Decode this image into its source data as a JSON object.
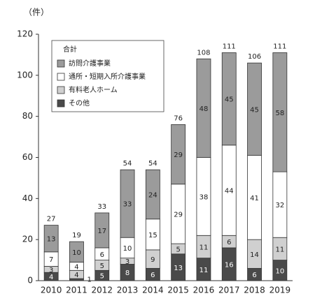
{
  "chart_data": {
    "type": "stacked-bar",
    "y_unit_label": "（件）",
    "categories": [
      "2010",
      "2011",
      "2012",
      "2013",
      "2014",
      "2015",
      "2016",
      "2017",
      "2018",
      "2019"
    ],
    "series": [
      {
        "name": "その他",
        "color": "#4a4a4a",
        "values": [
          4,
          1,
          5,
          8,
          6,
          13,
          11,
          16,
          6,
          10
        ]
      },
      {
        "name": "有料老人ホーム",
        "color": "#d0d0d0",
        "values": [
          3,
          4,
          5,
          3,
          9,
          5,
          11,
          6,
          14,
          11
        ]
      },
      {
        "name": "通所・短期入所介護事業",
        "color": "#ffffff",
        "values": [
          7,
          4,
          6,
          10,
          15,
          29,
          38,
          44,
          41,
          32
        ]
      },
      {
        "name": "訪問介護事業",
        "color": "#9b9b9b",
        "values": [
          13,
          10,
          17,
          33,
          24,
          29,
          48,
          45,
          45,
          58
        ]
      }
    ],
    "legend_title": "合計",
    "totals": [
      27,
      19,
      33,
      54,
      54,
      76,
      108,
      111,
      106,
      111
    ],
    "ylim": [
      0,
      120
    ],
    "yticks": [
      0,
      20,
      40,
      60,
      80,
      100,
      120
    ],
    "grid": false
  }
}
